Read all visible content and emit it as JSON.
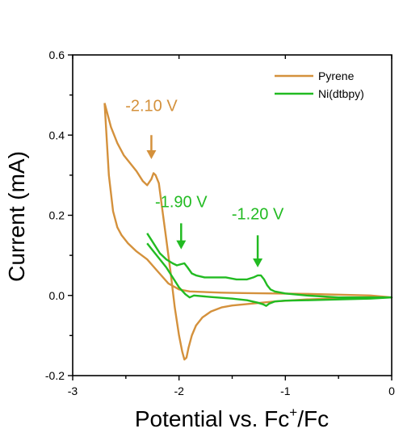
{
  "chart_data": {
    "type": "line",
    "title": "",
    "xlabel_main": "Potential vs. Fc",
    "xlabel_sup": "+",
    "xlabel_tail": "/Fc",
    "ylabel": "Current (mA)",
    "xlim": [
      -3,
      0
    ],
    "ylim": [
      -0.2,
      0.6
    ],
    "x_ticks": [
      -3,
      -2,
      -1,
      0
    ],
    "x_tick_labels": [
      "-3",
      "-2",
      "-1",
      "0"
    ],
    "y_ticks": [
      -0.2,
      0.0,
      0.2,
      0.4,
      0.6
    ],
    "y_tick_labels": [
      "-0.2",
      "0.0",
      "0.2",
      "0.4",
      "0.6"
    ],
    "legend_position": "top-right",
    "series": [
      {
        "name": "Pyrene",
        "color": "#D4913C",
        "x": [
          -2.7,
          -2.64,
          -2.58,
          -2.52,
          -2.46,
          -2.4,
          -2.34,
          -2.3,
          -2.26,
          -2.24,
          -2.22,
          -2.19,
          -2.16,
          -2.12,
          -2.08,
          -2.04,
          -2.0,
          -1.97,
          -1.95,
          -1.93,
          -1.91,
          -1.88,
          -1.84,
          -1.78,
          -1.7,
          -1.6,
          -1.5,
          -1.3,
          -1.1,
          -0.8,
          -0.5,
          -0.2,
          0.0,
          -0.2,
          -0.5,
          -0.8,
          -1.1,
          -1.4,
          -1.6,
          -1.8,
          -1.9,
          -2.0,
          -2.1,
          -2.2,
          -2.3,
          -2.4,
          -2.48,
          -2.54,
          -2.58,
          -2.62,
          -2.66,
          -2.7
        ],
        "y": [
          0.48,
          0.42,
          0.38,
          0.35,
          0.33,
          0.31,
          0.285,
          0.275,
          0.29,
          0.305,
          0.3,
          0.28,
          0.22,
          0.14,
          0.06,
          -0.03,
          -0.1,
          -0.14,
          -0.16,
          -0.155,
          -0.13,
          -0.1,
          -0.075,
          -0.055,
          -0.04,
          -0.03,
          -0.025,
          -0.02,
          -0.015,
          -0.01,
          -0.007,
          -0.005,
          -0.005,
          0.0,
          0.002,
          0.004,
          0.005,
          0.006,
          0.007,
          0.009,
          0.01,
          0.015,
          0.03,
          0.06,
          0.09,
          0.11,
          0.13,
          0.15,
          0.17,
          0.21,
          0.3,
          0.48
        ]
      },
      {
        "name": "Ni(dtbpy)",
        "color": "#22BB22",
        "x": [
          -2.3,
          -2.24,
          -2.18,
          -2.12,
          -2.06,
          -2.02,
          -1.98,
          -1.95,
          -1.92,
          -1.88,
          -1.84,
          -1.76,
          -1.66,
          -1.56,
          -1.46,
          -1.36,
          -1.3,
          -1.26,
          -1.23,
          -1.2,
          -1.17,
          -1.14,
          -1.1,
          -1.0,
          -0.8,
          -0.5,
          -0.2,
          0.0,
          -0.2,
          -0.5,
          -0.8,
          -1.0,
          -1.1,
          -1.15,
          -1.18,
          -1.21,
          -1.26,
          -1.36,
          -1.5,
          -1.7,
          -1.86,
          -1.9,
          -1.94,
          -2.0,
          -2.06,
          -2.12,
          -2.18,
          -2.24,
          -2.3
        ],
        "y": [
          0.155,
          0.13,
          0.105,
          0.09,
          0.08,
          0.075,
          0.078,
          0.08,
          0.07,
          0.055,
          0.05,
          0.045,
          0.045,
          0.045,
          0.04,
          0.04,
          0.045,
          0.05,
          0.05,
          0.04,
          0.025,
          0.015,
          0.01,
          0.005,
          0.0,
          -0.005,
          -0.005,
          -0.005,
          -0.008,
          -0.01,
          -0.012,
          -0.013,
          -0.015,
          -0.02,
          -0.026,
          -0.022,
          -0.018,
          -0.012,
          -0.008,
          -0.004,
          0.0,
          -0.005,
          0.003,
          0.02,
          0.045,
          0.07,
          0.09,
          0.11,
          0.13
        ]
      }
    ],
    "annotations": [
      {
        "text": "-2.10 V",
        "color": "#D4913C",
        "x": -2.26,
        "y": 0.46,
        "arrow_y_from": 0.4,
        "arrow_y_to": 0.34
      },
      {
        "text": "-1.90 V",
        "color": "#22BB22",
        "x": -1.98,
        "y": 0.22,
        "arrow_y_from": 0.18,
        "arrow_y_to": 0.115
      },
      {
        "text": "-1.20 V",
        "color": "#22BB22",
        "x": -1.26,
        "y": 0.19,
        "arrow_y_from": 0.15,
        "arrow_y_to": 0.07
      }
    ]
  }
}
